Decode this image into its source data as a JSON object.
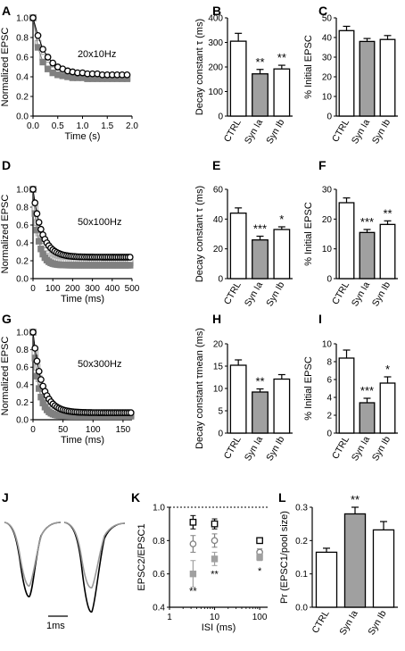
{
  "panel_labels": [
    "A",
    "B",
    "C",
    "D",
    "E",
    "F",
    "G",
    "H",
    "I",
    "J",
    "K",
    "L"
  ],
  "chart_data": [
    {
      "panel": "A",
      "type": "line",
      "annotation": "20x10Hz",
      "xlabel": "Time (s)",
      "ylabel": "Normalized EPSC",
      "xlim": [
        0,
        2.0
      ],
      "ylim": [
        0,
        1.0
      ],
      "xticks": [
        "0.0",
        "0.5",
        "1.0",
        "1.5",
        "2.0"
      ],
      "yticks": [
        "0.0",
        "0.2",
        "0.4",
        "0.6",
        "0.8",
        "1.0"
      ],
      "series": [
        {
          "color": "#000000",
          "marker": "open-circle",
          "x": [
            0,
            0.1,
            0.2,
            0.3,
            0.4,
            0.5,
            0.6,
            0.7,
            0.8,
            0.9,
            1.0,
            1.1,
            1.2,
            1.3,
            1.4,
            1.5,
            1.6,
            1.7,
            1.8,
            1.9
          ],
          "y": [
            1.0,
            0.82,
            0.68,
            0.6,
            0.54,
            0.5,
            0.48,
            0.46,
            0.45,
            0.44,
            0.44,
            0.43,
            0.43,
            0.43,
            0.42,
            0.42,
            0.42,
            0.42,
            0.42,
            0.42
          ]
        },
        {
          "color": "#808080",
          "marker": "filled-square",
          "x": [
            0,
            0.1,
            0.2,
            0.3,
            0.4,
            0.5,
            0.6,
            0.7,
            0.8,
            0.9,
            1.0,
            1.1,
            1.2,
            1.3,
            1.4,
            1.5,
            1.6,
            1.7,
            1.8,
            1.9
          ],
          "y": [
            1.0,
            0.7,
            0.55,
            0.48,
            0.44,
            0.42,
            0.41,
            0.4,
            0.39,
            0.39,
            0.39,
            0.38,
            0.38,
            0.38,
            0.38,
            0.38,
            0.38,
            0.38,
            0.38,
            0.38
          ]
        },
        {
          "color": "#b0b0b0",
          "marker": "open-square",
          "x": [
            0,
            0.1,
            0.2,
            0.3,
            0.4,
            0.5,
            0.6,
            0.7,
            0.8,
            0.9,
            1.0,
            1.1,
            1.2,
            1.3,
            1.4,
            1.5,
            1.6,
            1.7,
            1.8,
            1.9
          ],
          "y": [
            1.0,
            0.74,
            0.6,
            0.52,
            0.47,
            0.44,
            0.43,
            0.42,
            0.41,
            0.41,
            0.4,
            0.4,
            0.4,
            0.4,
            0.39,
            0.39,
            0.39,
            0.39,
            0.39,
            0.39
          ]
        }
      ]
    },
    {
      "panel": "B",
      "type": "bar",
      "ylabel": "Decay constant τ (ms)",
      "ylim": [
        0,
        400
      ],
      "yticks": [
        "0",
        "100",
        "200",
        "300",
        "400"
      ],
      "categories": [
        "CTRL",
        "Syn Ia",
        "Syn Ib"
      ],
      "values": [
        305,
        172,
        192
      ],
      "errors": [
        32,
        18,
        15
      ],
      "fills": [
        "#ffffff",
        "#a0a0a0",
        "#ffffff"
      ],
      "significance": [
        "",
        "**",
        "**"
      ]
    },
    {
      "panel": "C",
      "type": "bar",
      "ylabel": "% Initial EPSC",
      "ylim": [
        0,
        50
      ],
      "yticks": [
        "0",
        "10",
        "20",
        "30",
        "40",
        "50"
      ],
      "categories": [
        "CTRL",
        "Syn Ia",
        "Syn Ib"
      ],
      "values": [
        43.5,
        38,
        39
      ],
      "errors": [
        2.2,
        1.5,
        2.0
      ],
      "fills": [
        "#ffffff",
        "#a0a0a0",
        "#ffffff"
      ],
      "significance": [
        "",
        "",
        ""
      ]
    },
    {
      "panel": "D",
      "type": "line",
      "annotation": "50x100Hz",
      "xlabel": "Time (ms)",
      "ylabel": "Normalized EPSC",
      "xlim": [
        0,
        500
      ],
      "ylim": [
        0,
        1.0
      ],
      "xticks": [
        "0",
        "100",
        "200",
        "300",
        "400",
        "500"
      ],
      "yticks": [
        "0.0",
        "0.2",
        "0.4",
        "0.6",
        "0.8",
        "1.0"
      ],
      "decay": [
        {
          "color": "#000000",
          "marker": "open-circle",
          "y0": 1.0,
          "plateau": 0.24,
          "tau": 45
        },
        {
          "color": "#808080",
          "marker": "filled-square",
          "y0": 1.0,
          "plateau": 0.15,
          "tau": 26
        },
        {
          "color": "#b0b0b0",
          "marker": "open-square",
          "y0": 1.0,
          "plateau": 0.18,
          "tau": 33
        }
      ],
      "interval": 10,
      "count": 50
    },
    {
      "panel": "E",
      "type": "bar",
      "ylabel": "Decay constant τ (ms)",
      "ylim": [
        0,
        60
      ],
      "yticks": [
        "0",
        "20",
        "40",
        "60"
      ],
      "categories": [
        "CTRL",
        "Syn Ia",
        "Syn Ib"
      ],
      "values": [
        44,
        26,
        33
      ],
      "errors": [
        3.5,
        2.5,
        1.8
      ],
      "fills": [
        "#ffffff",
        "#a0a0a0",
        "#ffffff"
      ],
      "significance": [
        "",
        "***",
        "*"
      ]
    },
    {
      "panel": "F",
      "type": "bar",
      "ylabel": "% Initial EPSC",
      "ylim": [
        0,
        30
      ],
      "yticks": [
        "0",
        "10",
        "20",
        "30"
      ],
      "categories": [
        "CTRL",
        "Syn Ia",
        "Syn Ib"
      ],
      "values": [
        25.5,
        15.5,
        18.2
      ],
      "errors": [
        1.6,
        1.0,
        1.2
      ],
      "fills": [
        "#ffffff",
        "#a0a0a0",
        "#ffffff"
      ],
      "significance": [
        "",
        "***",
        "**"
      ]
    },
    {
      "panel": "G",
      "type": "line",
      "annotation": "50x300Hz",
      "xlabel": "Time (ms)",
      "ylabel": "Normalized EPSC",
      "xlim": [
        0,
        165
      ],
      "ylim": [
        0,
        1.0
      ],
      "xticks": [
        "0",
        "50",
        "100",
        "150"
      ],
      "yticks": [
        "0.0",
        "0.2",
        "0.4",
        "0.6",
        "0.8",
        "1.0"
      ],
      "decay": [
        {
          "color": "#000000",
          "marker": "open-circle",
          "y0": 1.0,
          "plateau": 0.08,
          "tau": 15
        },
        {
          "color": "#808080",
          "marker": "filled-square",
          "y0": 1.0,
          "plateau": 0.04,
          "tau": 9
        },
        {
          "color": "#b0b0b0",
          "marker": "open-square",
          "y0": 1.0,
          "plateau": 0.06,
          "tau": 12
        }
      ],
      "interval": 3.33,
      "count": 50
    },
    {
      "panel": "H",
      "type": "bar",
      "ylabel": "Decay constant τmean (ms)",
      "ylim": [
        0,
        20
      ],
      "yticks": [
        "0",
        "5",
        "10",
        "15",
        "20"
      ],
      "categories": [
        "CTRL",
        "Syn Ia",
        "Syn Ib"
      ],
      "values": [
        15.2,
        9.2,
        12.1
      ],
      "errors": [
        1.2,
        0.7,
        1.0
      ],
      "fills": [
        "#ffffff",
        "#a0a0a0",
        "#ffffff"
      ],
      "significance": [
        "",
        "**",
        ""
      ]
    },
    {
      "panel": "I",
      "type": "bar",
      "ylabel": "% Initial EPSC",
      "ylim": [
        0,
        10
      ],
      "yticks": [
        "0",
        "2",
        "4",
        "6",
        "8",
        "10"
      ],
      "categories": [
        "CTRL",
        "Syn Ia",
        "Syn Ib"
      ],
      "values": [
        8.4,
        3.4,
        5.6
      ],
      "errors": [
        0.9,
        0.5,
        0.7
      ],
      "fills": [
        "#ffffff",
        "#a0a0a0",
        "#ffffff"
      ],
      "significance": [
        "",
        "***",
        "*"
      ]
    },
    {
      "panel": "K",
      "type": "scatter",
      "ylabel": "EPSC2/EPSC1",
      "xlabel": "ISI (ms)",
      "xscale": "log",
      "xlim": [
        1,
        150
      ],
      "ylim": [
        0.4,
        1.0
      ],
      "xticks": [
        "1",
        "10",
        "100"
      ],
      "yticks": [
        "0.4",
        "0.6",
        "0.8",
        "1.0"
      ],
      "series": [
        {
          "marker": "open-square",
          "color": "#000000",
          "x": [
            3.33,
            10,
            100
          ],
          "y": [
            0.91,
            0.9,
            0.8
          ],
          "err": [
            0.04,
            0.03,
            0.01
          ]
        },
        {
          "marker": "open-circle",
          "color": "#808080",
          "x": [
            3.33,
            10,
            100
          ],
          "y": [
            0.78,
            0.8,
            0.73
          ],
          "err": [
            0.05,
            0.04,
            0.02
          ]
        },
        {
          "marker": "filled-square",
          "color": "#a0a0a0",
          "x": [
            3.33,
            10,
            100
          ],
          "y": [
            0.6,
            0.69,
            0.7
          ],
          "err": [
            0.08,
            0.04,
            0.02
          ]
        }
      ],
      "significance": [
        {
          "x": 3.33,
          "y": 0.5,
          "label": "**"
        },
        {
          "x": 10,
          "y": 0.6,
          "label": "**"
        },
        {
          "x": 100,
          "y": 0.62,
          "label": "*"
        }
      ],
      "reference_y": 1.0
    },
    {
      "panel": "L",
      "type": "bar",
      "ylabel": "Pr (EPSC1/pool size)",
      "ylim": [
        0,
        0.3
      ],
      "yticks": [
        "0.0",
        "0.1",
        "0.2",
        "0.3"
      ],
      "categories": [
        "CTRL",
        "Syn Ia",
        "Syn Ib"
      ],
      "values": [
        0.165,
        0.28,
        0.232
      ],
      "errors": [
        0.012,
        0.02,
        0.025
      ],
      "fills": [
        "#ffffff",
        "#a0a0a0",
        "#ffffff"
      ],
      "significance": [
        "",
        "**",
        ""
      ]
    }
  ],
  "traces_J": {
    "scale_bar_label": "1ms"
  }
}
